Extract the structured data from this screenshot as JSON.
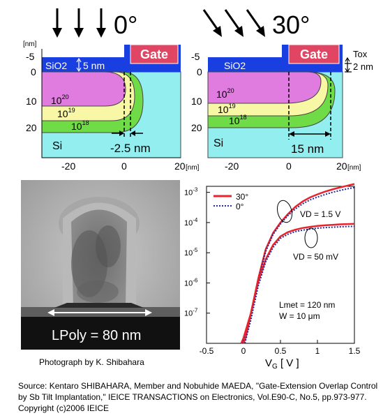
{
  "panel_0": {
    "angle_label": "0°",
    "gate_label": "Gate",
    "oxide_label": "SiO2",
    "oxide_thickness": "5 nm",
    "si_label": "Si",
    "unit_label": "[nm]",
    "y_ticks": [
      "-5",
      "0",
      "10",
      "20"
    ],
    "x_ticks": [
      "-20",
      "0",
      "20",
      "[nm]"
    ],
    "contours": [
      "10^20",
      "10^19",
      "10^18"
    ],
    "overlap_label": "-2.5 nm"
  },
  "panel_30": {
    "angle_label": "30°",
    "gate_label": "Gate",
    "oxide_label": "SiO2",
    "tox_label": "Tox",
    "tox_value": "2 nm",
    "si_label": "Si",
    "y_ticks": [
      "-5",
      "0",
      "10",
      "20"
    ],
    "x_ticks": [
      "-20",
      "0",
      "20",
      "[nm]"
    ],
    "contours": [
      "10^20",
      "10^19",
      "10^18"
    ],
    "overlap_label": "15 nm"
  },
  "tem": {
    "lpoly_label": "LPoly = 80 nm",
    "caption": "Photograph by K. Shibahara"
  },
  "chart_data": {
    "type": "line",
    "xlabel": "VG [ V ]",
    "ylabel": "",
    "xlim": [
      -0.5,
      1.5
    ],
    "ylim_log10": [
      -8,
      -2.8
    ],
    "y_scale": "log",
    "x_ticks": [
      "-0.5",
      "0",
      "0.5",
      "1",
      "1.5"
    ],
    "y_ticks": [
      "10^-3",
      "10^-4",
      "10^-5",
      "10^-6",
      "10^-7"
    ],
    "legend": [
      "30°",
      "0°"
    ],
    "legend_position": "top-left",
    "colors": {
      "30": "#e8232d",
      "0": "#1f2d9c"
    },
    "annotations": {
      "vd_high": "VD = 1.5 V",
      "vd_low": "VD = 50 mV",
      "lmet": "Lmet = 120 nm",
      "w": "W = 10 μm"
    },
    "series": [
      {
        "name": "30°",
        "vd": "1.5 V",
        "x": [
          -0.03,
          0.0,
          0.1,
          0.2,
          0.3,
          0.4,
          0.5,
          0.6,
          0.7,
          0.8,
          0.9,
          1.0,
          1.1,
          1.2,
          1.3,
          1.4,
          1.5
        ],
        "y": [
          1e-08,
          1.5e-08,
          1e-07,
          1.4e-06,
          1.3e-05,
          4.5e-05,
          0.0001,
          0.00019,
          0.00033,
          0.0005,
          0.00068,
          0.00086,
          0.00105,
          0.00125,
          0.00145,
          0.00165,
          0.0019
        ]
      },
      {
        "name": "0°",
        "vd": "1.5 V",
        "x": [
          -0.01,
          0.05,
          0.1,
          0.2,
          0.3,
          0.4,
          0.5,
          0.6,
          0.7,
          0.8,
          0.9,
          1.0,
          1.1,
          1.2,
          1.3,
          1.4,
          1.5
        ],
        "y": [
          1e-08,
          2.5e-08,
          8e-08,
          1.1e-06,
          1.1e-05,
          4e-05,
          9e-05,
          0.00017,
          0.00028,
          0.00042,
          0.00056,
          0.0007,
          0.00084,
          0.001,
          0.00115,
          0.0013,
          0.00145
        ]
      },
      {
        "name": "30°",
        "vd": "50 mV",
        "x": [
          0.0,
          0.03,
          0.1,
          0.2,
          0.3,
          0.4,
          0.5,
          0.6,
          0.7,
          0.8,
          0.9,
          1.0,
          1.1,
          1.2,
          1.3,
          1.4,
          1.5
        ],
        "y": [
          1e-08,
          1.6e-08,
          1e-07,
          1.1e-06,
          6e-06,
          1.8e-05,
          3.5e-05,
          4.8e-05,
          5.8e-05,
          6.6e-05,
          7.2e-05,
          7.7e-05,
          8.1e-05,
          8.4e-05,
          8.7e-05,
          8.9e-05,
          9.1e-05
        ]
      },
      {
        "name": "0°",
        "vd": "50 mV",
        "x": [
          0.02,
          0.05,
          0.1,
          0.2,
          0.3,
          0.4,
          0.5,
          0.6,
          0.7,
          0.8,
          0.9,
          1.0,
          1.1,
          1.2,
          1.3,
          1.4,
          1.5
        ],
        "y": [
          1e-08,
          2e-08,
          6e-08,
          8e-07,
          5e-06,
          1.5e-05,
          3e-05,
          4.1e-05,
          5e-05,
          5.6e-05,
          6.1e-05,
          6.5e-05,
          6.8e-05,
          7e-05,
          7.2e-05,
          7.4e-05,
          7.5e-05
        ]
      }
    ]
  },
  "source": "Source: Kentaro SHIBAHARA, Member and Nobuhide MAEDA, \"Gate-Extension Overlap Control by Sb Tilt Implantation,\" IEICE TRANSACTIONS on Electronics, Vol.E90-C, No.5, pp.973-977. Copyright (c)2006 IEICE"
}
